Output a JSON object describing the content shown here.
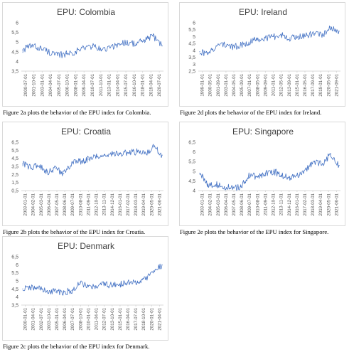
{
  "line_color": "#4472C4",
  "panels": [
    {
      "title": "EPU: Colombia",
      "caption": "Figure 2a plots the behavior of the EPU index for Colombia.",
      "ticks_y": [
        "3,5",
        "4",
        "4,5",
        "5",
        "5,5",
        "6"
      ],
      "ticks_x": [
        "2000-07-01",
        "2001-10-01",
        "2003-01-01",
        "2004-04-01",
        "2005-07-01",
        "2006-10-01",
        "2008-01-01",
        "2009-04-01",
        "2010-07-01",
        "2011-10-01",
        "2013-01-01",
        "2014-04-01",
        "2015-07-01",
        "2016-10-01",
        "2018-01-01",
        "2019-04-01",
        "2020-07-01"
      ]
    },
    {
      "title": "EPU: Ireland",
      "caption": "Figure 2d plots the behavior of the EPU index for Ireland.",
      "ticks_y": [
        "2,5",
        "3",
        "3,5",
        "4",
        "4,5",
        "5",
        "5,5",
        "6"
      ],
      "ticks_x": [
        "1999-01-01",
        "2000-05-01",
        "2001-09-01",
        "2003-01-01",
        "2004-05-01",
        "2005-09-01",
        "2007-01-01",
        "2008-05-01",
        "2009-09-01",
        "2011-01-01",
        "2012-05-01",
        "2013-09-01",
        "2015-01-01",
        "2016-05-01",
        "2017-09-01",
        "2019-01-01",
        "2020-05-01",
        "2021-09-01"
      ]
    },
    {
      "title": "EPU: Croatia",
      "caption": "Figure 2b plots the behavior of the EPU index for Croatia.",
      "ticks_y": [
        "0,5",
        "1,5",
        "2,5",
        "3,5",
        "4,5",
        "5,5",
        "6,5"
      ],
      "ticks_x": [
        "2003-01-01",
        "2004-02-01",
        "2005-03-01",
        "2006-04-01",
        "2007-05-01",
        "2008-06-01",
        "2009-07-01",
        "2010-08-01",
        "2011-09-01",
        "2012-10-01",
        "2013-11-01",
        "2014-12-01",
        "2016-01-01",
        "2017-02-01",
        "2018-03-01",
        "2019-04-01",
        "2020-05-01",
        "2021-06-01"
      ]
    },
    {
      "title": "EPU: Singapore",
      "caption": "Figure 2e plots the behavior of the EPU index for Singapore.",
      "ticks_y": [
        "4",
        "4,5",
        "5",
        "5,5",
        "6",
        "6,5"
      ],
      "ticks_x": [
        "2003-01-01",
        "2004-02-01",
        "2005-03-01",
        "2006-04-01",
        "2007-05-01",
        "2008-06-01",
        "2009-07-01",
        "2010-08-01",
        "2011-09-01",
        "2012-10-01",
        "2013-11-01",
        "2014-12-01",
        "2016-01-01",
        "2017-02-01",
        "2018-03-01",
        "2019-04-01",
        "2020-05-01",
        "2021-06-01"
      ]
    },
    {
      "title": "EPU: Denmark",
      "caption": "Figure 2c plots the behavior of the EPU index for Denmark.",
      "ticks_y": [
        "3,5",
        "4",
        "4,5",
        "5",
        "5,5",
        "6",
        "6,5"
      ],
      "ticks_x": [
        "2000-01-01",
        "2001-04-01",
        "2002-07-01",
        "2003-10-01",
        "2005-01-01",
        "2006-04-01",
        "2007-07-01",
        "2008-10-01",
        "2010-01-01",
        "2011-04-01",
        "2012-07-01",
        "2013-10-01",
        "2015-01-01",
        "2016-04-01",
        "2017-07-01",
        "2018-10-01",
        "2020-01-01",
        "2021-04-01"
      ]
    }
  ],
  "chart_data": [
    {
      "type": "line",
      "title": "EPU: Colombia",
      "x": [
        "2000-07-01",
        "2001-10-01",
        "2003-01-01",
        "2004-04-01",
        "2005-07-01",
        "2006-10-01",
        "2008-01-01",
        "2009-04-01",
        "2010-07-01",
        "2011-10-01",
        "2013-01-01",
        "2014-04-01",
        "2015-07-01",
        "2016-10-01",
        "2018-01-01",
        "2019-04-01",
        "2020-07-01"
      ],
      "values": [
        4.6,
        4.8,
        4.7,
        4.5,
        4.3,
        4.4,
        4.5,
        4.7,
        4.8,
        4.6,
        4.7,
        4.9,
        5.0,
        4.9,
        5.1,
        5.3,
        4.8
      ],
      "ylim": [
        3.5,
        6
      ],
      "grid": false,
      "legend": false
    },
    {
      "type": "line",
      "title": "EPU: Ireland",
      "x": [
        "1999-01-01",
        "2000-05-01",
        "2001-09-01",
        "2003-01-01",
        "2004-05-01",
        "2005-09-01",
        "2007-01-01",
        "2008-05-01",
        "2009-09-01",
        "2011-01-01",
        "2012-05-01",
        "2013-09-01",
        "2015-01-01",
        "2016-05-01",
        "2017-09-01",
        "2019-01-01",
        "2020-05-01",
        "2021-09-01"
      ],
      "values": [
        3.9,
        3.7,
        4.3,
        4.5,
        4.2,
        4.4,
        4.6,
        4.8,
        4.9,
        5.0,
        5.1,
        4.9,
        5.0,
        5.1,
        5.2,
        5.1,
        5.7,
        5.4
      ],
      "ylim": [
        2.5,
        6
      ],
      "grid": false,
      "legend": false
    },
    {
      "type": "line",
      "title": "EPU: Croatia",
      "x": [
        "2003-01-01",
        "2004-02-01",
        "2005-03-01",
        "2006-04-01",
        "2007-05-01",
        "2008-06-01",
        "2009-07-01",
        "2010-08-01",
        "2011-09-01",
        "2012-10-01",
        "2013-11-01",
        "2014-12-01",
        "2016-01-01",
        "2017-02-01",
        "2018-03-01",
        "2019-04-01",
        "2020-05-01",
        "2021-06-01"
      ],
      "values": [
        3.8,
        3.4,
        3.6,
        2.8,
        3.2,
        2.6,
        4.0,
        4.1,
        4.4,
        4.7,
        4.9,
        5.0,
        5.1,
        5.2,
        5.3,
        5.1,
        5.9,
        4.9
      ],
      "ylim": [
        0.5,
        6.5
      ],
      "grid": false,
      "legend": false
    },
    {
      "type": "line",
      "title": "EPU: Singapore",
      "x": [
        "2003-01-01",
        "2004-02-01",
        "2005-03-01",
        "2006-04-01",
        "2007-05-01",
        "2008-06-01",
        "2009-07-01",
        "2010-08-01",
        "2011-09-01",
        "2012-10-01",
        "2013-11-01",
        "2014-12-01",
        "2016-01-01",
        "2017-02-01",
        "2018-03-01",
        "2019-04-01",
        "2020-05-01",
        "2021-06-01"
      ],
      "values": [
        4.9,
        4.3,
        4.3,
        4.2,
        4.1,
        4.2,
        4.8,
        4.7,
        4.9,
        5.0,
        4.8,
        4.7,
        4.8,
        5.1,
        5.5,
        5.4,
        5.9,
        5.3
      ],
      "ylim": [
        4,
        6.5
      ],
      "grid": false,
      "legend": false
    },
    {
      "type": "line",
      "title": "EPU: Denmark",
      "x": [
        "2000-01-01",
        "2001-04-01",
        "2002-07-01",
        "2003-10-01",
        "2005-01-01",
        "2006-04-01",
        "2007-07-01",
        "2008-10-01",
        "2010-01-01",
        "2011-04-01",
        "2012-07-01",
        "2013-10-01",
        "2015-01-01",
        "2016-04-01",
        "2017-07-01",
        "2018-10-01",
        "2020-01-01",
        "2021-04-01"
      ],
      "values": [
        4.5,
        4.6,
        4.5,
        4.4,
        4.3,
        4.3,
        4.4,
        4.9,
        4.7,
        4.6,
        4.8,
        4.7,
        4.8,
        4.9,
        4.9,
        5.1,
        5.6,
        6.0
      ],
      "ylim": [
        3.5,
        6.5
      ],
      "grid": false,
      "legend": false
    }
  ]
}
